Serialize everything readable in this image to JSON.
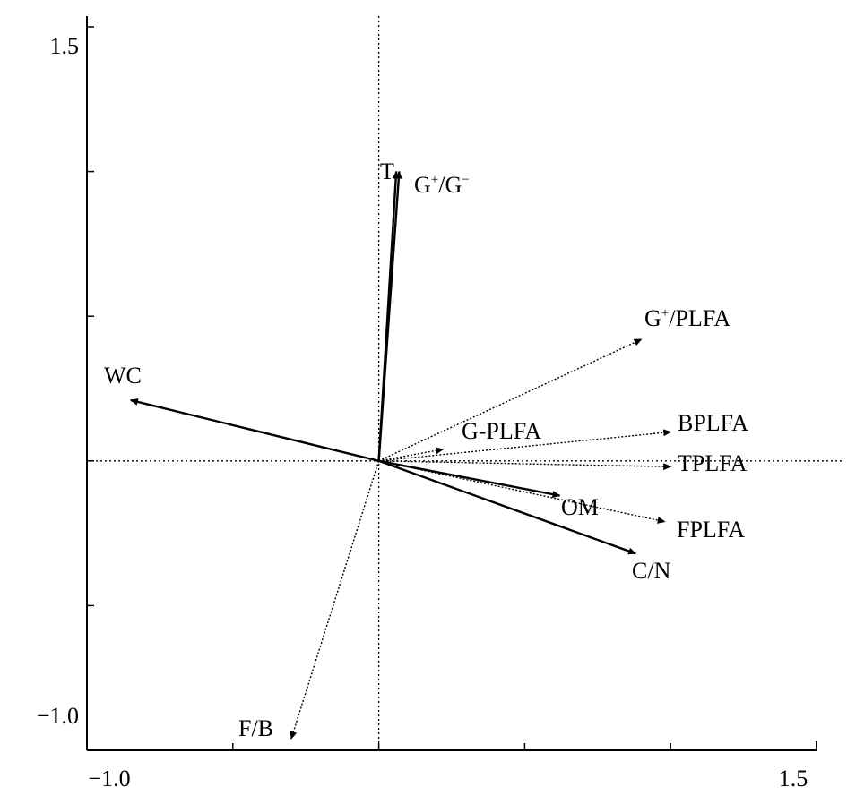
{
  "chart_data": {
    "type": "scatter",
    "subtype": "biplot",
    "title": "",
    "xlabel": "",
    "ylabel": "",
    "xlim": [
      -1.0,
      1.5
    ],
    "ylim": [
      -1.0,
      1.5
    ],
    "x_tick_labels": [
      "−1.0",
      "1.5"
    ],
    "y_tick_labels": [
      "1.5",
      "−1.0"
    ],
    "reference_lines": {
      "x": 0,
      "y": 0,
      "style": "dotted"
    },
    "grid": false,
    "legend": "none",
    "vectors": [
      {
        "name": "T",
        "x": 0.06,
        "y": 1.0,
        "style": "solid"
      },
      {
        "name": "G+/G−",
        "label_base": "G",
        "label_sup1": "+",
        "label_mid": "/G",
        "label_sup2": "−",
        "x": 0.07,
        "y": 1.0,
        "style": "solid"
      },
      {
        "name": "G+/PLFA",
        "label_base": "G",
        "label_sup1": "+",
        "label_mid": "/PLFA",
        "x": 0.9,
        "y": 0.42,
        "style": "dotted"
      },
      {
        "name": "WC",
        "x": -0.85,
        "y": 0.21,
        "style": "solid"
      },
      {
        "name": "G-PLFA",
        "x": 0.22,
        "y": 0.04,
        "style": "dotted"
      },
      {
        "name": "BPLFA",
        "x": 1.0,
        "y": 0.1,
        "style": "dotted"
      },
      {
        "name": "TPLFA",
        "x": 1.0,
        "y": -0.02,
        "style": "dotted"
      },
      {
        "name": "OM",
        "x": 0.62,
        "y": -0.12,
        "style": "solid"
      },
      {
        "name": "FPLFA",
        "x": 0.98,
        "y": -0.21,
        "style": "dotted"
      },
      {
        "name": "C/N",
        "x": 0.88,
        "y": -0.32,
        "style": "solid"
      },
      {
        "name": "F/B",
        "x": -0.3,
        "y": -0.96,
        "style": "dotted"
      }
    ]
  }
}
